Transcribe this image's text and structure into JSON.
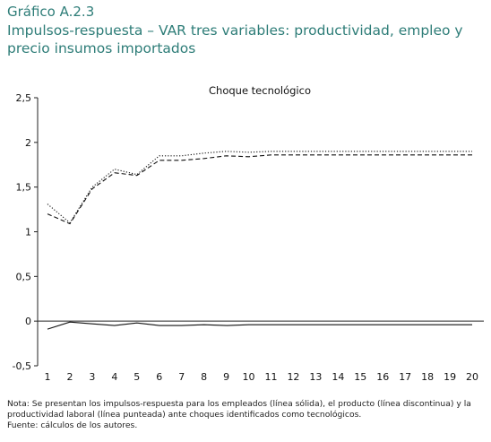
{
  "figure": {
    "label": "Gráfico A.2.3",
    "title": "Impulsos-respuesta – VAR tres variables: productividad, empleo y precio insumos importados"
  },
  "chart_data": {
    "type": "line",
    "title": "Choque tecnológico",
    "xlabel": "",
    "ylabel": "",
    "x": [
      1,
      2,
      3,
      4,
      5,
      6,
      7,
      8,
      9,
      10,
      11,
      12,
      13,
      14,
      15,
      16,
      17,
      18,
      19,
      20
    ],
    "ylim": [
      -0.5,
      2.5
    ],
    "yticks": [
      -0.5,
      0,
      0.5,
      1,
      1.5,
      2,
      2.5
    ],
    "ytick_labels": [
      "-0,5",
      "0",
      "0,5",
      "1",
      "1,5",
      "2",
      "2,5"
    ],
    "xtick_labels": [
      "1",
      "2",
      "3",
      "4",
      "5",
      "6",
      "7",
      "8",
      "9",
      "10",
      "11",
      "12",
      "13",
      "14",
      "15",
      "16",
      "17",
      "18",
      "19",
      "20"
    ],
    "grid": false,
    "series": [
      {
        "style": "solid",
        "values": [
          -0.09,
          -0.01,
          -0.03,
          -0.05,
          -0.02,
          -0.05,
          -0.05,
          -0.04,
          -0.05,
          -0.04,
          -0.04,
          -0.04,
          -0.04,
          -0.04,
          -0.04,
          -0.04,
          -0.04,
          -0.04,
          -0.04,
          -0.04
        ]
      },
      {
        "style": "dashed",
        "values": [
          1.2,
          1.09,
          1.48,
          1.66,
          1.63,
          1.8,
          1.8,
          1.82,
          1.85,
          1.84,
          1.86,
          1.86,
          1.86,
          1.86,
          1.86,
          1.86,
          1.86,
          1.86,
          1.86,
          1.86
        ]
      },
      {
        "style": "dotted",
        "values": [
          1.31,
          1.1,
          1.5,
          1.7,
          1.64,
          1.85,
          1.85,
          1.88,
          1.9,
          1.89,
          1.9,
          1.9,
          1.9,
          1.9,
          1.9,
          1.9,
          1.9,
          1.9,
          1.9,
          1.9
        ]
      }
    ]
  },
  "notes": {
    "line1": "Nota: Se presentan los impulsos-respuesta para los empleados (línea sólida), el producto (línea discontinua) y la",
    "line2": "productividad laboral (línea punteada) ante choques identificados como tecnológicos.",
    "line3": "Fuente: cálculos de los autores."
  }
}
